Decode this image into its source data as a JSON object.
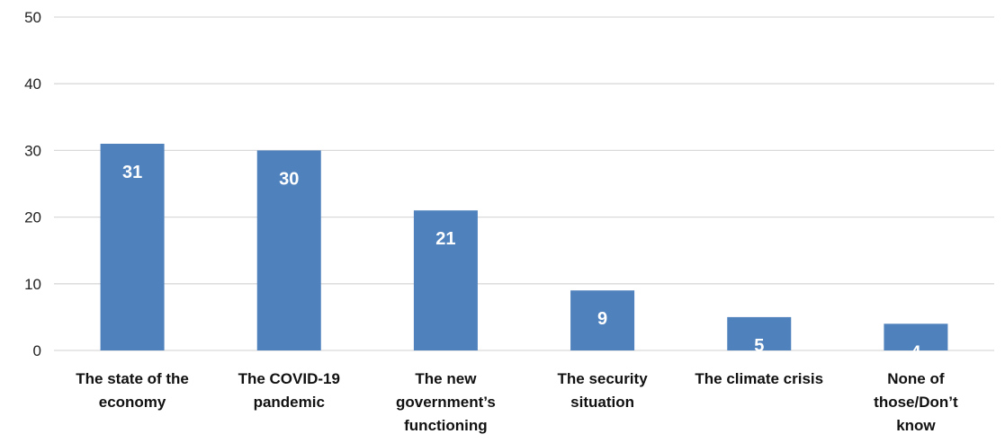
{
  "chart_data": {
    "type": "bar",
    "categories": [
      [
        "The state of the",
        "economy"
      ],
      [
        "The COVID-19",
        "pandemic"
      ],
      [
        "The new",
        "government’s",
        "functioning"
      ],
      [
        "The security",
        "situation"
      ],
      [
        "The climate crisis"
      ],
      [
        "None of",
        "those/Don’t",
        "know"
      ]
    ],
    "values": [
      31,
      30,
      21,
      9,
      5,
      4
    ],
    "data_labels": [
      "31",
      "30",
      "21",
      "9",
      "5",
      "4"
    ],
    "y_ticks": [
      "0",
      "10",
      "20",
      "30",
      "40",
      "50"
    ],
    "ylim": [
      0,
      50
    ],
    "grid": true,
    "legend": "none",
    "bar_color": "#4F81BD",
    "grid_color": "#D9D9D9",
    "label_color": "#FFFFFF"
  }
}
